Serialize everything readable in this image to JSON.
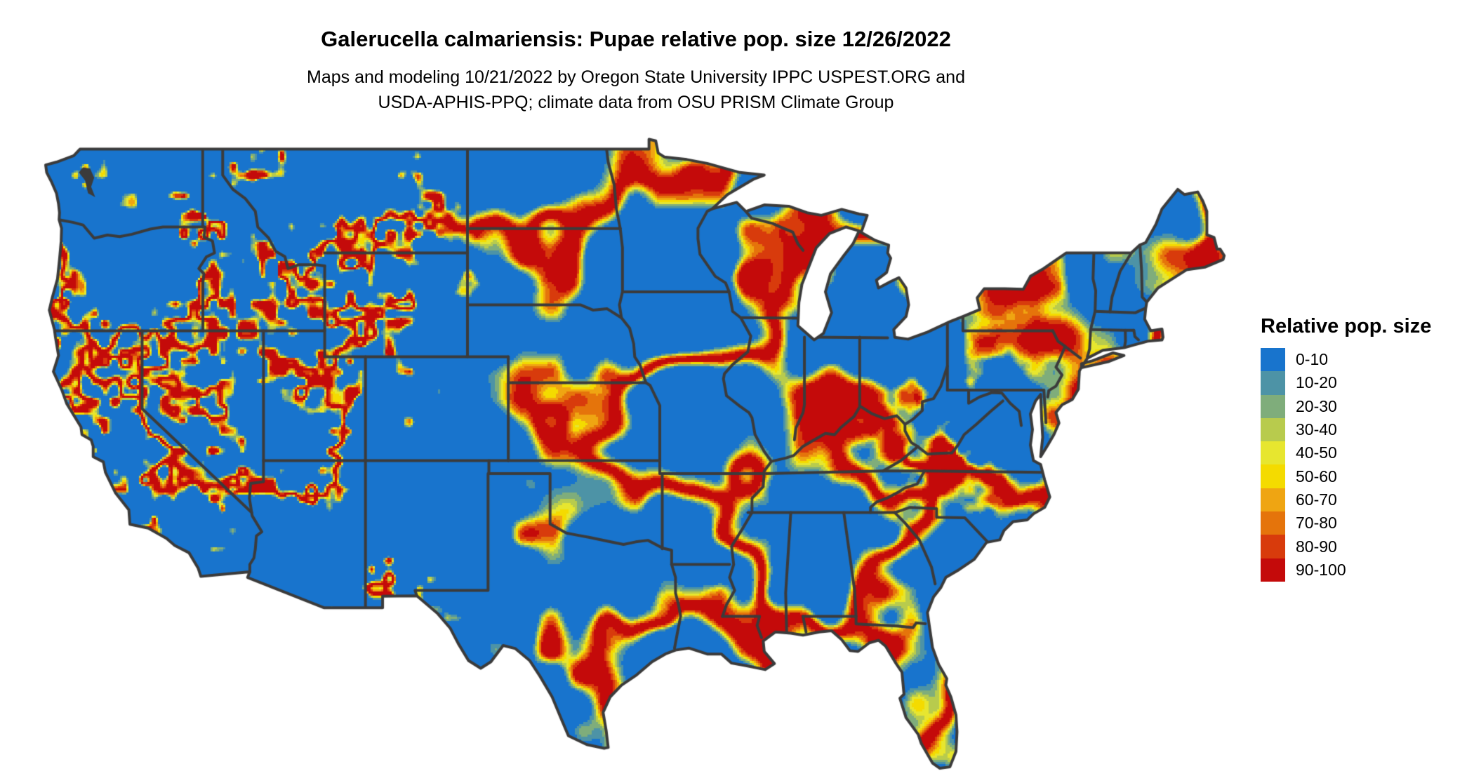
{
  "title": "Galerucella calmariensis: Pupae relative pop. size 12/26/2022",
  "subtitle": {
    "line1": "Maps and modeling 10/21/2022 by Oregon State University IPPC USPEST.ORG and",
    "line2": "USDA-APHIS-PPQ; climate data from OSU PRISM Climate Group"
  },
  "legend": {
    "title": "Relative pop. size",
    "bins": [
      {
        "label": "0-10",
        "color": "#1874CD"
      },
      {
        "label": "10-20",
        "color": "#4D93A6"
      },
      {
        "label": "20-30",
        "color": "#7FAD7B"
      },
      {
        "label": "30-40",
        "color": "#B8CB4D"
      },
      {
        "label": "40-50",
        "color": "#E7E62F"
      },
      {
        "label": "50-60",
        "color": "#F4DB00"
      },
      {
        "label": "60-70",
        "color": "#EFA512"
      },
      {
        "label": "70-80",
        "color": "#E5740B"
      },
      {
        "label": "80-90",
        "color": "#D83B0C"
      },
      {
        "label": "90-100",
        "color": "#C40A0A"
      }
    ]
  },
  "map": {
    "region": "Continental United States",
    "border_color": "#3B3B3B",
    "water_color": "#FFFFFF",
    "background_color": "#FFFFFF"
  }
}
